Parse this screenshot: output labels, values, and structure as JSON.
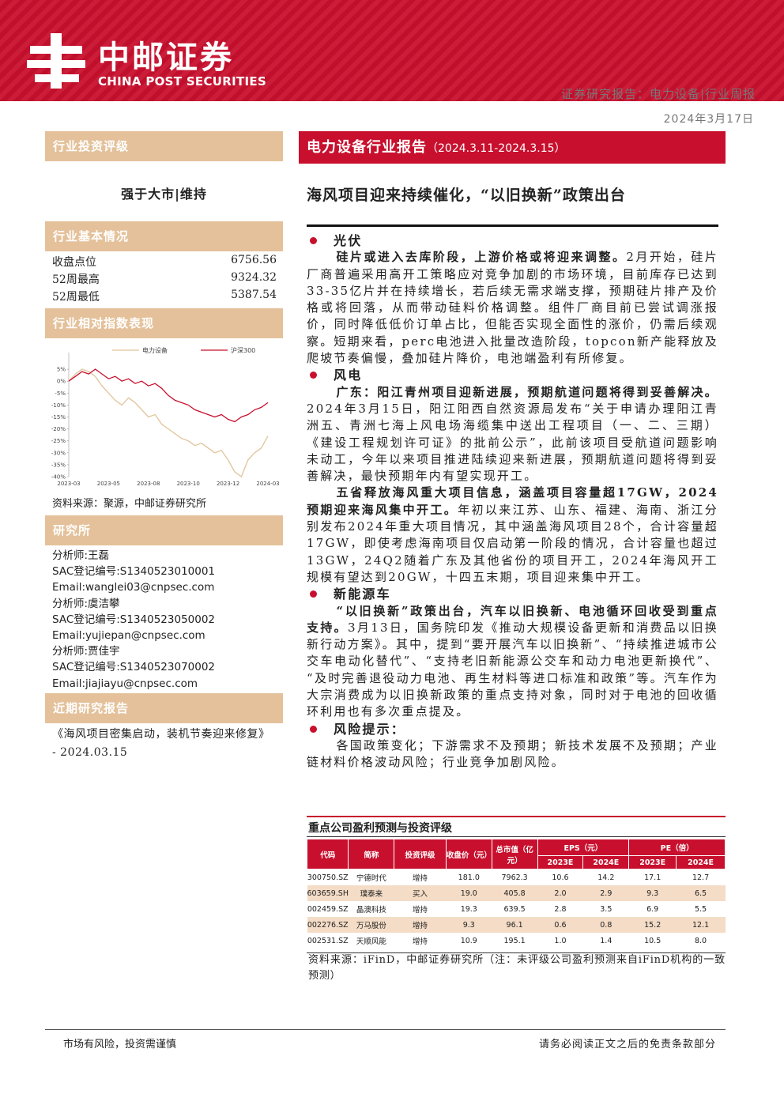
{
  "header": {
    "logo_cn": "中邮证券",
    "logo_en": "CHINA POST SECURITIES",
    "report_type": "证券研究报告：电力设备|行业周报",
    "date": "2024年3月17日"
  },
  "sidebar": {
    "rating_title": "行业投资评级",
    "rating": "强于大市|维持",
    "basics_title": "行业基本情况",
    "basics": [
      [
        "收盘点位",
        "6756.56"
      ],
      [
        "52周最高",
        "9324.32"
      ],
      [
        "52周最低",
        "5387.54"
      ]
    ],
    "perf_title": "行业相对指数表现",
    "perf_source": "资料来源：聚源，中邮证券研究所",
    "research_title": "研究所",
    "research_lines": [
      "分析师:王磊",
      "SAC登记编号:S1340523010001",
      "Email:wanglei03@cnpsec.com",
      "分析师:虞洁攀",
      "SAC登记编号:S1340523050002",
      "Email:yujiepan@cnpsec.com",
      "分析师:贾佳宇",
      "SAC登记编号:S1340523070002",
      "Email:jiajiayu@cnpsec.com"
    ],
    "recent_title": "近期研究报告",
    "recent": "《海风项目密集启动，装机节奏迎来修复》 - 2024.03.15"
  },
  "chart_data": {
    "type": "line",
    "categories": [
      "2023-03",
      null,
      null,
      null,
      null,
      null,
      "2023-05",
      null,
      null,
      null,
      null,
      null,
      "2023-08",
      null,
      null,
      null,
      null,
      null,
      "2023-10",
      null,
      null,
      null,
      null,
      null,
      "2023-12",
      null,
      null,
      null,
      null,
      null,
      "2024-03"
    ],
    "series": [
      {
        "name": "电力设备",
        "color": "#e0c49a",
        "values": [
          0,
          3,
          5,
          4,
          2,
          -2,
          -5,
          -8,
          -10,
          -7,
          -9,
          -12,
          -15,
          -14,
          -18,
          -20,
          -22,
          -24,
          -25,
          -27,
          -26,
          -28,
          -30,
          -29,
          -33,
          -38,
          -40,
          -33,
          -30,
          -28,
          -23
        ]
      },
      {
        "name": "沪深300",
        "color": "#c8102e",
        "values": [
          0,
          2,
          4,
          3,
          5,
          3,
          1,
          2,
          0,
          1,
          -1,
          0,
          -2,
          -1,
          -3,
          -6,
          -8,
          -9,
          -10,
          -12,
          -13,
          -14,
          -15,
          -14,
          -16,
          -17,
          -15,
          -14,
          -12,
          -11,
          -9
        ]
      }
    ],
    "ylim": [
      -40,
      10
    ],
    "yticks": [
      {
        "value": 5,
        "label": "5%"
      },
      {
        "value": 0,
        "label": "0%"
      },
      {
        "value": -5,
        "label": "-5%"
      },
      {
        "value": -10,
        "label": "-10%"
      },
      {
        "value": -15,
        "label": "-15%"
      },
      {
        "value": -20,
        "label": "-20%"
      },
      {
        "value": -25,
        "label": "-25%"
      },
      {
        "value": -30,
        "label": "-30%"
      },
      {
        "value": -35,
        "label": "-35%"
      },
      {
        "value": -40,
        "label": "-40%"
      }
    ],
    "grid": false,
    "legend": "top"
  },
  "main": {
    "banner_title": "电力设备行业报告",
    "banner_period": "（2024.3.11-2024.3.15）",
    "headline": "海风项目迎来持续催化，“以旧换新”政策出台",
    "sections": [
      {
        "heading": "光伏",
        "paragraphs": [
          {
            "bold": "硅片或进入去库阶段，上游价格或将迎来调整。",
            "text": "2月开始，硅片厂商普遍采用高开工策略应对竞争加剧的市场环境，目前库存已达到33-35亿片并在持续增长，若后续无需求端支撑，预期硅片排产及价格或将回落，从而带动硅料价格调整。组件厂商目前已尝试调涨报价，同时降低低价订单占比，但能否实现全面性的涨价，仍需后续观察。短期来看，perc电池进入批量改造阶段，topcon新产能释放及爬坡节奏偏慢，叠加硅片降价，电池端盈利有所修复。"
          }
        ]
      },
      {
        "heading": "风电",
        "paragraphs": [
          {
            "bold": "广东：阳江青州项目迎新进展，预期航道问题将得到妥善解决。",
            "text": "2024年3月15日，阳江阳西自然资源局发布“关于申请办理阳江青洲五、青洲七海上风电场海缆集中送出工程项目（一、二、三期）《建设工程规划许可证》的批前公示”，此前该项目受航道问题影响未动工，今年以来项目推进陆续迎来新进展，预期航道问题将得到妥善解决，最快预期年内有望实现开工。"
          },
          {
            "bold": "五省释放海风重大项目信息，涵盖项目容量超17GW，2024预期迎来海风集中开工。",
            "text": "年初以来江苏、山东、福建、海南、浙江分别发布2024年重大项目情况，其中涵盖海风项目28个，合计容量超17GW，即使考虑海南项目仅启动第一阶段的情况，合计容量也超过13GW，24Q2随着广东及其他省份的项目开工，2024年海风开工规模有望达到20GW，十四五末期，项目迎来集中开工。"
          }
        ]
      },
      {
        "heading": "新能源车",
        "paragraphs": [
          {
            "bold": "“以旧换新”政策出台，汽车以旧换新、电池循环回收受到重点支持。",
            "text": "3月13日，国务院印发《推动大规模设备更新和消费品以旧换新行动方案》。其中，提到“要开展汽车以旧换新”、“持续推进城市公交车电动化替代”、“支持老旧新能源公交车和动力电池更新换代”、“及时完善退役动力电池、再生材料等进口标准和政策”等。汽车作为大宗消费成为以旧换新政策的重点支持对象，同时对于电池的回收循环利用也有多次重点提及。"
          }
        ]
      },
      {
        "heading": "风险提示：",
        "paragraphs": [
          {
            "text": "各国政策变化；下游需求不及预期；新技术发展不及预期；产业链材料价格波动风险；行业竞争加剧风险。"
          }
        ]
      }
    ]
  },
  "table": {
    "title": "重点公司盈利预测与投资评级",
    "head": [
      "代码",
      "简称",
      "投资评级",
      "收盘价（元）",
      "总市值（亿元）",
      "EPS（元）",
      "PE（倍）"
    ],
    "subhead": [
      "2023E",
      "2024E",
      "2023E",
      "2024E"
    ],
    "rows": [
      [
        "300750.SZ",
        "宁德时代",
        "增持",
        "181.0",
        "7962.3",
        "10.6",
        "14.2",
        "17.1",
        "12.7"
      ],
      [
        "603659.SH",
        "璞泰来",
        "买入",
        "19.0",
        "405.8",
        "2.0",
        "2.9",
        "9.3",
        "6.5"
      ],
      [
        "002459.SZ",
        "晶澳科技",
        "增持",
        "19.3",
        "639.5",
        "2.8",
        "3.5",
        "6.9",
        "5.5"
      ],
      [
        "002276.SZ",
        "万马股份",
        "增持",
        "9.3",
        "96.1",
        "0.6",
        "0.8",
        "15.2",
        "12.1"
      ],
      [
        "002531.SZ",
        "天顺风能",
        "增持",
        "10.9",
        "195.1",
        "1.0",
        "1.4",
        "10.5",
        "8.0"
      ]
    ],
    "source": "资料来源：iFinD，中邮证券研究所（注：未评级公司盈利预测来自iFinD机构的一致预测）"
  },
  "footer": {
    "left": "市场有风险，投资需谨慎",
    "right": "请务必阅读正文之后的免责条款部分"
  }
}
